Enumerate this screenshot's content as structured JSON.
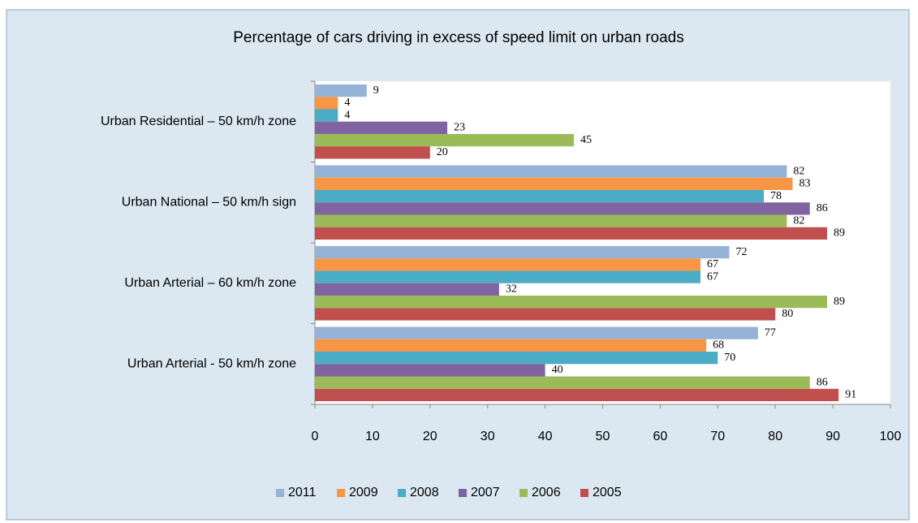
{
  "chart_data": {
    "type": "hbar",
    "title": "Percentage of cars driving in excess of speed limit on urban roads",
    "categories": [
      "Urban Residential – 50 km/h zone",
      "Urban National – 50 km/h sign",
      "Urban Arterial – 60 km/h zone",
      "Urban Arterial - 50 km/h zone"
    ],
    "series": [
      {
        "name": "2011",
        "color": "#95b3d7",
        "values": [
          9,
          82,
          72,
          77
        ]
      },
      {
        "name": "2009",
        "color": "#f79646",
        "values": [
          4,
          83,
          67,
          68
        ]
      },
      {
        "name": "2008",
        "color": "#4bacc6",
        "values": [
          4,
          78,
          67,
          70
        ]
      },
      {
        "name": "2007",
        "color": "#8064a2",
        "values": [
          23,
          86,
          32,
          40
        ]
      },
      {
        "name": "2006",
        "color": "#9bbb59",
        "values": [
          45,
          82,
          89,
          86
        ]
      },
      {
        "name": "2005",
        "color": "#c0504d",
        "values": [
          20,
          89,
          80,
          91
        ]
      }
    ],
    "xlim": [
      0,
      100
    ],
    "xticks": [
      0,
      10,
      20,
      30,
      40,
      50,
      60,
      70,
      80,
      90,
      100
    ],
    "legend": "bottom"
  }
}
